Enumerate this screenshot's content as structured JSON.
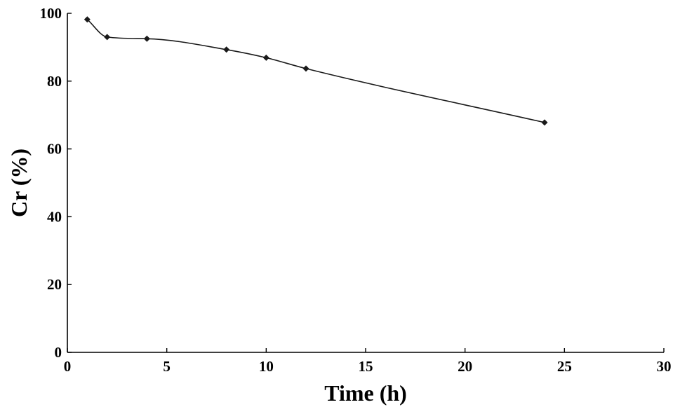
{
  "chart_data": {
    "type": "line",
    "title": "",
    "xlabel": "Time (h)",
    "ylabel": "Cr (%)",
    "xlim": [
      0,
      30
    ],
    "ylim": [
      0,
      100
    ],
    "xticks": [
      0,
      5,
      10,
      15,
      20,
      25,
      30
    ],
    "yticks": [
      0,
      20,
      40,
      60,
      80,
      100
    ],
    "grid": false,
    "smooth": true,
    "marker": "diamond",
    "colors": {
      "line": "#1a1a1a",
      "axes": "#000000"
    },
    "series": [
      {
        "x": [
          1,
          2,
          4,
          8,
          10,
          12,
          24
        ],
        "y": [
          98.2,
          93.0,
          92.5,
          89.3,
          86.9,
          83.7,
          67.8
        ]
      }
    ]
  }
}
